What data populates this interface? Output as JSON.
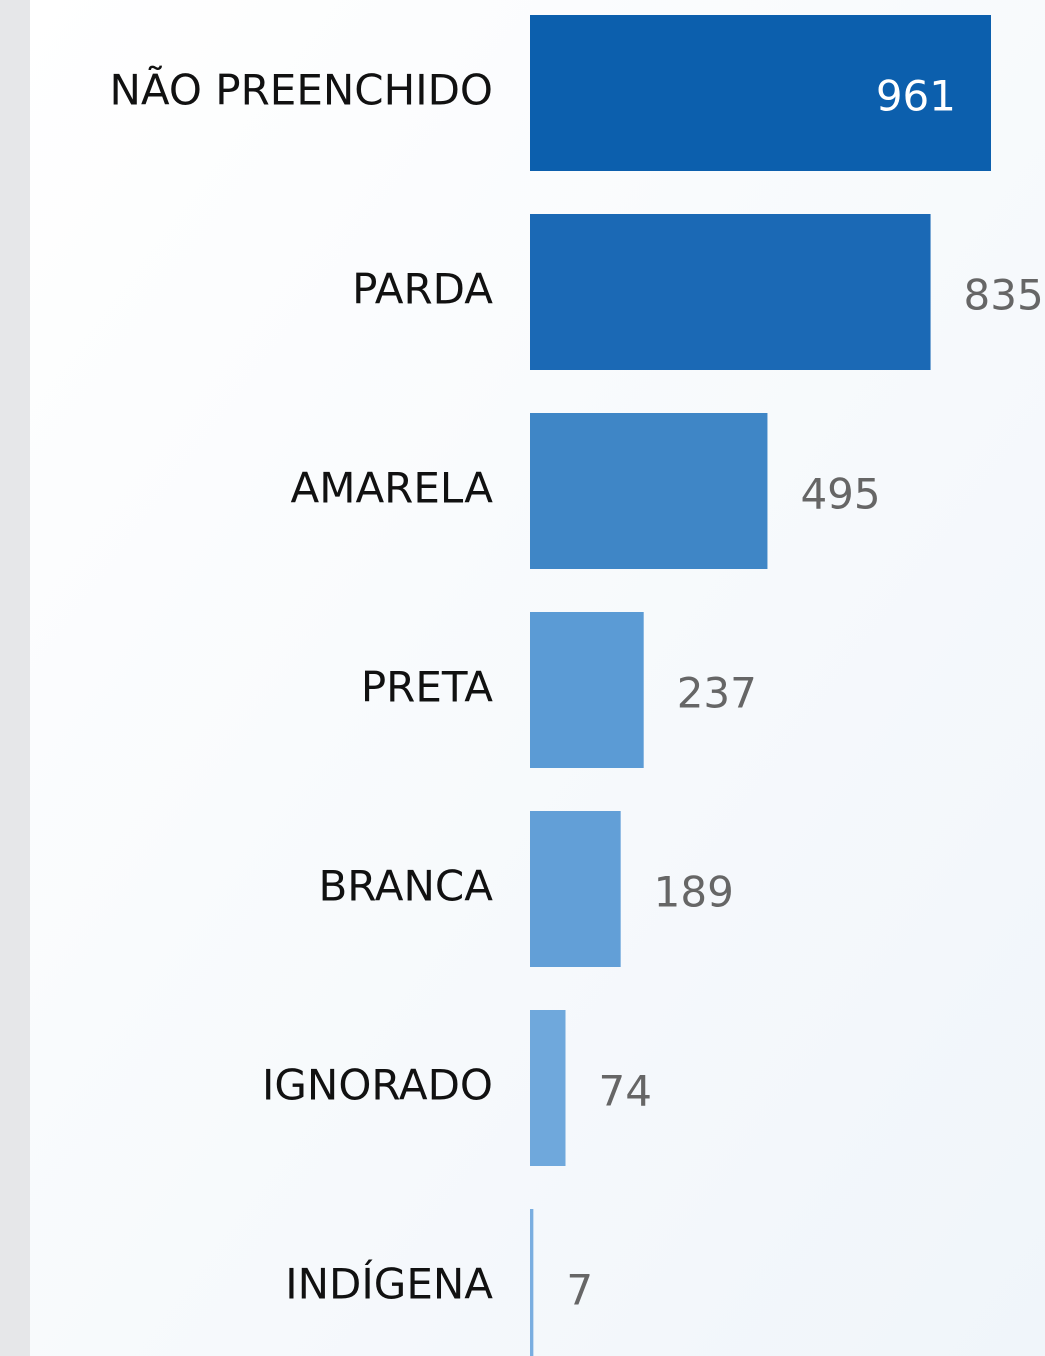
{
  "chart_data": {
    "type": "bar",
    "orientation": "horizontal",
    "categories": [
      "NÃO PREENCHIDO",
      "PARDA",
      "AMARELA",
      "PRETA",
      "BRANCA",
      "IGNORADO",
      "INDÍGENA"
    ],
    "values": [
      961,
      835,
      495,
      237,
      189,
      74,
      7
    ],
    "colors": [
      "#0c5fad",
      "#1b69b5",
      "#3f86c6",
      "#5b9bd5",
      "#629fd7",
      "#6fa8dc",
      "#7aaee0"
    ]
  }
}
